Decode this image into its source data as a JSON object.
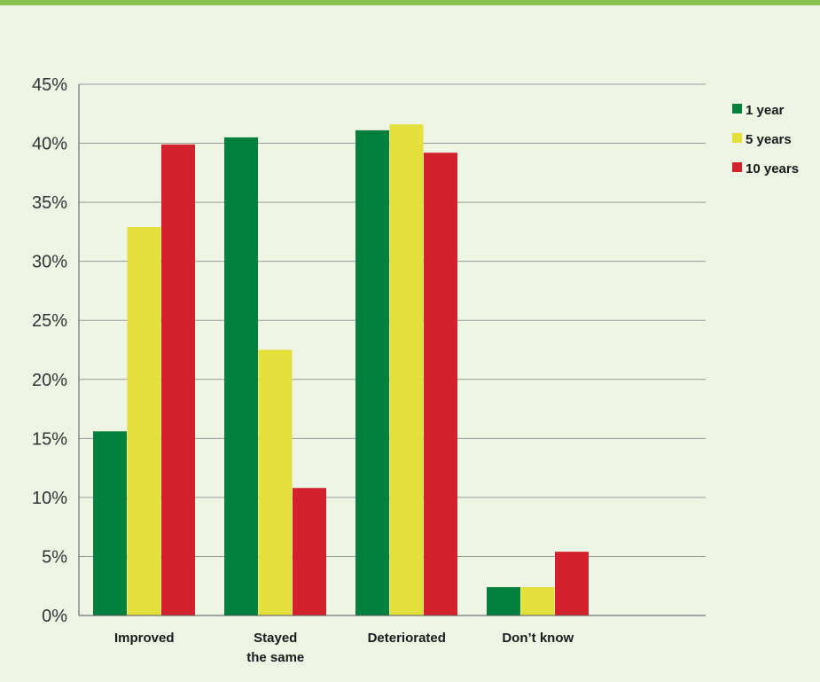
{
  "colors": {
    "accent": "#8cc153",
    "background": "#eef5e5",
    "grid": "#9a9a9a"
  },
  "chart_data": {
    "type": "bar",
    "categories": [
      [
        "Improved"
      ],
      [
        "Stayed",
        "the same"
      ],
      [
        "Deteriorated"
      ],
      [
        "Don’t know"
      ]
    ],
    "series": [
      {
        "name": "1 year",
        "color": "#007f3d",
        "values": [
          15.6,
          40.5,
          41.1,
          2.4
        ]
      },
      {
        "name": "5 years",
        "color": "#e3e03b",
        "values": [
          32.9,
          22.5,
          41.6,
          2.4
        ]
      },
      {
        "name": "10 years",
        "color": "#d3212d",
        "values": [
          39.9,
          10.8,
          39.2,
          5.4
        ]
      }
    ],
    "yticks": [
      "0%",
      "5%",
      "10%",
      "15%",
      "20%",
      "25%",
      "30%",
      "35%",
      "40%",
      "45%"
    ],
    "ylim": [
      0,
      45
    ],
    "grid": true,
    "legend": "top-right"
  }
}
